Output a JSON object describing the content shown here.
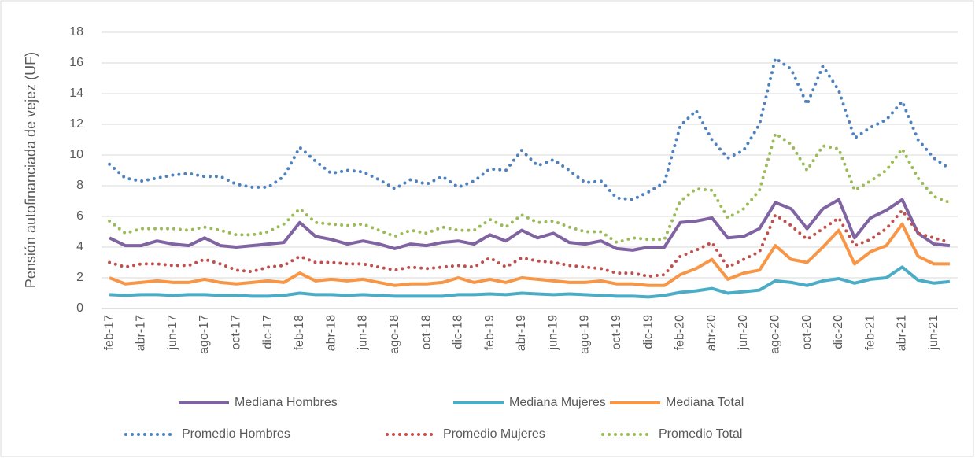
{
  "chart_data": {
    "type": "line",
    "y_label": "Pensión autofinanciada de vejez (UF)",
    "categories": [
      "feb-17",
      null,
      "abr-17",
      null,
      "jun-17",
      null,
      "ago-17",
      null,
      "oct-17",
      null,
      "dic-17",
      null,
      "feb-18",
      null,
      "abr-18",
      null,
      "jun-18",
      null,
      "ago-18",
      null,
      "oct-18",
      null,
      "dic-18",
      null,
      "feb-19",
      null,
      "abr-19",
      null,
      "jun-19",
      null,
      "ago-19",
      null,
      "oct-19",
      null,
      "dic-19",
      null,
      "feb-20",
      null,
      "abr-20",
      null,
      "jun-20",
      null,
      "ago-20",
      null,
      "oct-20",
      null,
      "dic-20",
      null,
      "feb-21",
      null,
      "abr-21",
      null,
      "jun-21",
      null
    ],
    "ylim": [
      0,
      18
    ],
    "yticks": [
      0,
      2,
      4,
      6,
      8,
      10,
      12,
      14,
      16,
      18
    ],
    "grid": true,
    "series": [
      {
        "name": "Mediana Hombres",
        "color": "#8064a2",
        "style": "solid",
        "values": [
          4.6,
          4.1,
          4.1,
          4.4,
          4.2,
          4.1,
          4.6,
          4.1,
          4.0,
          4.1,
          4.2,
          4.3,
          5.6,
          4.7,
          4.5,
          4.2,
          4.4,
          4.2,
          3.9,
          4.2,
          4.1,
          4.3,
          4.4,
          4.2,
          4.8,
          4.4,
          5.1,
          4.6,
          4.9,
          4.3,
          4.2,
          4.4,
          3.9,
          3.8,
          4.0,
          4.0,
          5.6,
          5.7,
          5.9,
          4.6,
          4.7,
          5.2,
          6.9,
          6.5,
          5.2,
          6.5,
          7.1,
          4.6,
          5.9,
          6.4,
          7.1,
          4.9,
          4.2,
          4.1
        ]
      },
      {
        "name": "Mediana Mujeres",
        "color": "#4bacc6",
        "style": "solid",
        "values": [
          0.9,
          0.85,
          0.9,
          0.9,
          0.85,
          0.9,
          0.9,
          0.85,
          0.85,
          0.8,
          0.8,
          0.85,
          1.0,
          0.9,
          0.9,
          0.85,
          0.9,
          0.85,
          0.8,
          0.8,
          0.8,
          0.8,
          0.9,
          0.9,
          0.95,
          0.9,
          1.0,
          0.95,
          0.9,
          0.95,
          0.9,
          0.85,
          0.8,
          0.8,
          0.75,
          0.85,
          1.05,
          1.15,
          1.3,
          1.0,
          1.1,
          1.2,
          1.8,
          1.7,
          1.5,
          1.8,
          1.95,
          1.65,
          1.9,
          2.0,
          2.7,
          1.85,
          1.65,
          1.75
        ]
      },
      {
        "name": "Mediana Total",
        "color": "#f79646",
        "style": "solid",
        "values": [
          2.0,
          1.6,
          1.7,
          1.8,
          1.7,
          1.7,
          1.9,
          1.7,
          1.6,
          1.7,
          1.8,
          1.7,
          2.3,
          1.8,
          1.9,
          1.8,
          1.9,
          1.7,
          1.5,
          1.6,
          1.6,
          1.7,
          2.0,
          1.7,
          1.9,
          1.7,
          2.0,
          1.9,
          1.8,
          1.7,
          1.7,
          1.8,
          1.6,
          1.6,
          1.5,
          1.5,
          2.2,
          2.6,
          3.2,
          1.9,
          2.3,
          2.5,
          4.1,
          3.2,
          3.0,
          4.0,
          5.1,
          2.9,
          3.7,
          4.1,
          5.5,
          3.4,
          2.9,
          2.9
        ]
      },
      {
        "name": "Promedio Hombres",
        "color": "#4f81bd",
        "style": "dotted",
        "values": [
          9.4,
          8.5,
          8.3,
          8.5,
          8.7,
          8.8,
          8.6,
          8.6,
          8.1,
          7.9,
          7.9,
          8.6,
          10.5,
          9.6,
          8.8,
          9.0,
          8.9,
          8.4,
          7.8,
          8.4,
          8.1,
          8.6,
          7.9,
          8.3,
          9.1,
          9.0,
          10.3,
          9.3,
          9.7,
          9.0,
          8.2,
          8.3,
          7.2,
          7.1,
          7.6,
          8.2,
          11.9,
          12.9,
          11.0,
          9.8,
          10.3,
          12.0,
          16.3,
          15.6,
          13.3,
          15.8,
          14.2,
          11.1,
          11.8,
          12.3,
          13.5,
          11.0,
          9.8,
          9.1
        ]
      },
      {
        "name": "Promedio Mujeres",
        "color": "#c0504d",
        "style": "dotted",
        "values": [
          3.0,
          2.7,
          2.9,
          2.9,
          2.8,
          2.8,
          3.2,
          2.9,
          2.5,
          2.4,
          2.7,
          2.8,
          3.4,
          3.0,
          3.0,
          2.9,
          2.9,
          2.7,
          2.5,
          2.7,
          2.6,
          2.7,
          2.8,
          2.7,
          3.3,
          2.7,
          3.3,
          3.1,
          3.0,
          2.8,
          2.7,
          2.6,
          2.3,
          2.3,
          2.1,
          2.2,
          3.4,
          3.8,
          4.3,
          2.7,
          3.2,
          3.7,
          6.1,
          5.4,
          4.5,
          5.2,
          5.9,
          4.1,
          4.5,
          5.2,
          6.4,
          4.9,
          4.6,
          4.3
        ]
      },
      {
        "name": "Promedio Total",
        "color": "#9bbb59",
        "style": "dotted",
        "values": [
          5.7,
          4.9,
          5.2,
          5.2,
          5.2,
          5.1,
          5.3,
          5.1,
          4.8,
          4.8,
          5.0,
          5.5,
          6.5,
          5.6,
          5.5,
          5.4,
          5.5,
          5.1,
          4.7,
          5.1,
          4.9,
          5.3,
          5.1,
          5.1,
          5.8,
          5.3,
          6.1,
          5.6,
          5.7,
          5.3,
          5.0,
          5.0,
          4.3,
          4.6,
          4.5,
          4.5,
          7.0,
          7.8,
          7.7,
          5.9,
          6.5,
          7.7,
          11.4,
          10.7,
          9.0,
          10.6,
          10.4,
          7.7,
          8.3,
          9.0,
          10.4,
          8.5,
          7.3,
          6.9
        ]
      }
    ]
  }
}
